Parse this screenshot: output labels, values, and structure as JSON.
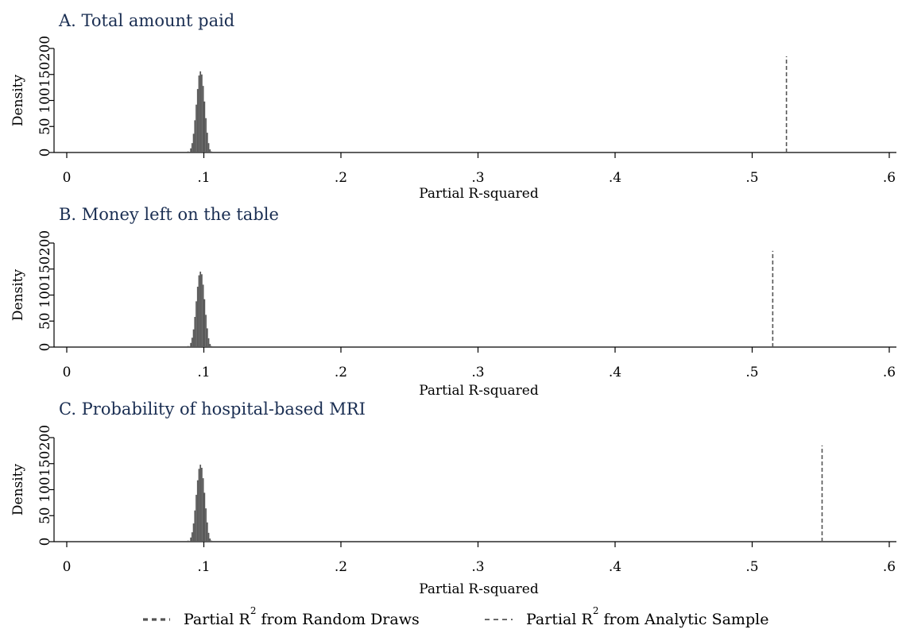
{
  "chart_data": [
    {
      "type": "histogram",
      "title": "A. Total amount paid",
      "xlabel": "Partial R-squared",
      "ylabel": "Density",
      "xlim": [
        0,
        0.6
      ],
      "ylim": [
        0,
        200
      ],
      "x_ticks": [
        "0",
        ".1",
        ".2",
        ".3",
        ".4",
        ".5",
        ".6"
      ],
      "y_ticks": [
        "0",
        "50",
        "100",
        "150",
        "200"
      ],
      "histogram_bins": [
        [
          0.088,
          2
        ],
        [
          0.09,
          8
        ],
        [
          0.091,
          18
        ],
        [
          0.092,
          36
        ],
        [
          0.093,
          62
        ],
        [
          0.094,
          92
        ],
        [
          0.095,
          122
        ],
        [
          0.096,
          148
        ],
        [
          0.097,
          156
        ],
        [
          0.098,
          150
        ],
        [
          0.099,
          128
        ],
        [
          0.1,
          98
        ],
        [
          0.101,
          66
        ],
        [
          0.102,
          38
        ],
        [
          0.103,
          18
        ],
        [
          0.104,
          6
        ],
        [
          0.105,
          2
        ]
      ],
      "analytic_sample_value": 0.525
    },
    {
      "type": "histogram",
      "title": "B. Money left on the table",
      "xlabel": "Partial R-squared",
      "ylabel": "Density",
      "xlim": [
        0,
        0.6
      ],
      "ylim": [
        0,
        200
      ],
      "x_ticks": [
        "0",
        ".1",
        ".2",
        ".3",
        ".4",
        ".5",
        ".6"
      ],
      "y_ticks": [
        "0",
        "50",
        "100",
        "150",
        "200"
      ],
      "histogram_bins": [
        [
          0.088,
          2
        ],
        [
          0.09,
          8
        ],
        [
          0.091,
          18
        ],
        [
          0.092,
          34
        ],
        [
          0.093,
          58
        ],
        [
          0.094,
          88
        ],
        [
          0.095,
          116
        ],
        [
          0.096,
          138
        ],
        [
          0.097,
          145
        ],
        [
          0.098,
          140
        ],
        [
          0.099,
          120
        ],
        [
          0.1,
          92
        ],
        [
          0.101,
          62
        ],
        [
          0.102,
          36
        ],
        [
          0.103,
          17
        ],
        [
          0.104,
          6
        ],
        [
          0.105,
          2
        ]
      ],
      "analytic_sample_value": 0.515
    },
    {
      "type": "histogram",
      "title": "C. Probability of hospital-based MRI",
      "xlabel": "Partial R-squared",
      "ylabel": "Density",
      "xlim": [
        0,
        0.6
      ],
      "ylim": [
        0,
        200
      ],
      "x_ticks": [
        "0",
        ".1",
        ".2",
        ".3",
        ".4",
        ".5",
        ".6"
      ],
      "y_ticks": [
        "0",
        "50",
        "100",
        "150",
        "200"
      ],
      "histogram_bins": [
        [
          0.088,
          2
        ],
        [
          0.09,
          8
        ],
        [
          0.091,
          18
        ],
        [
          0.092,
          35
        ],
        [
          0.093,
          60
        ],
        [
          0.094,
          90
        ],
        [
          0.095,
          118
        ],
        [
          0.096,
          140
        ],
        [
          0.097,
          148
        ],
        [
          0.098,
          142
        ],
        [
          0.099,
          122
        ],
        [
          0.1,
          94
        ],
        [
          0.101,
          64
        ],
        [
          0.102,
          37
        ],
        [
          0.103,
          17
        ],
        [
          0.104,
          6
        ],
        [
          0.105,
          2
        ]
      ],
      "analytic_sample_value": 0.551
    }
  ],
  "legend": {
    "position": "bottom",
    "items": [
      {
        "prefix": "Partial R",
        "superscript": "2",
        "suffix": " from Random Draws",
        "style": "dashed-thick",
        "color": "#555555"
      },
      {
        "prefix": "Partial R",
        "superscript": "2",
        "suffix": " from Analytic Sample",
        "style": "dashed-thin",
        "color": "#555555"
      }
    ]
  },
  "colors": {
    "bars": "#595959",
    "reference_line": "#555555",
    "title": "#1a2e52",
    "axis": "#000000"
  }
}
